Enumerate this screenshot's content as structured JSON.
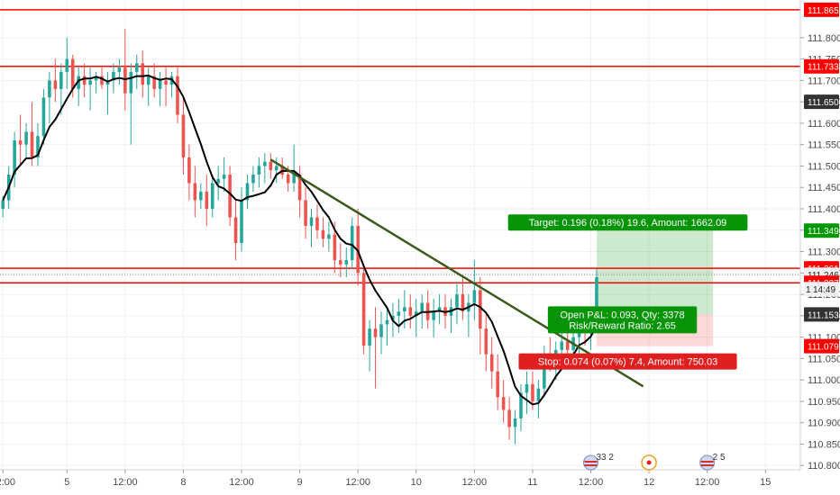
{
  "chart_data": {
    "type": "candlestick",
    "y_range": [
      110.79,
      111.888
    ],
    "price_ticks": [
      110.8,
      110.85,
      110.9,
      110.95,
      111.0,
      111.05,
      111.1,
      111.15,
      111.2,
      111.25,
      111.3,
      111.35,
      111.4,
      111.45,
      111.5,
      111.55,
      111.6,
      111.65,
      111.7,
      111.75,
      111.8
    ],
    "price_tick_labels": [
      "110.800",
      "110.850",
      "110.900",
      "110.950",
      "111.000",
      "111.050",
      "111.100",
      "111.150",
      "111.200",
      "111.250",
      "111.300",
      "111.350",
      "111.400",
      "111.450",
      "111.500",
      "111.550",
      "111.600",
      "111.650",
      "111.700",
      "111.750",
      "111.800"
    ],
    "time_ticks": [
      {
        "i": 0,
        "label": "12:00"
      },
      {
        "i": 11,
        "label": "5"
      },
      {
        "i": 21,
        "label": "12:00"
      },
      {
        "i": 31,
        "label": "8"
      },
      {
        "i": 41,
        "label": "12:00"
      },
      {
        "i": 51,
        "label": "9"
      },
      {
        "i": 61,
        "label": "12:00"
      },
      {
        "i": 71,
        "label": "10"
      },
      {
        "i": 81,
        "label": "12:00"
      },
      {
        "i": 91,
        "label": "11"
      },
      {
        "i": 101,
        "label": "12:00"
      },
      {
        "i": 111,
        "label": "12"
      },
      {
        "i": 121,
        "label": "12:00"
      },
      {
        "i": 131,
        "label": "15"
      }
    ],
    "x_index_range": [
      -0.5,
      137
    ],
    "candles": [
      [
        111.4,
        111.43,
        111.38,
        111.42
      ],
      [
        111.42,
        111.5,
        111.4,
        111.48
      ],
      [
        111.48,
        111.58,
        111.45,
        111.56
      ],
      [
        111.56,
        111.62,
        111.5,
        111.55
      ],
      [
        111.55,
        111.6,
        111.52,
        111.58
      ],
      [
        111.58,
        111.65,
        111.5,
        111.52
      ],
      [
        111.52,
        111.6,
        111.5,
        111.57
      ],
      [
        111.57,
        111.68,
        111.55,
        111.66
      ],
      [
        111.66,
        111.72,
        111.6,
        111.7
      ],
      [
        111.7,
        111.75,
        111.65,
        111.68
      ],
      [
        111.68,
        111.74,
        111.62,
        111.72
      ],
      [
        111.72,
        111.8,
        111.68,
        111.75
      ],
      [
        111.75,
        111.76,
        111.66,
        111.68
      ],
      [
        111.68,
        111.73,
        111.64,
        111.71
      ],
      [
        111.71,
        111.74,
        111.66,
        111.69
      ],
      [
        111.69,
        111.73,
        111.63,
        111.7
      ],
      [
        111.7,
        111.72,
        111.67,
        111.71
      ],
      [
        111.71,
        111.73,
        111.68,
        111.69
      ],
      [
        111.69,
        111.72,
        111.62,
        111.7
      ],
      [
        111.7,
        111.74,
        111.67,
        111.72
      ],
      [
        111.72,
        111.75,
        111.69,
        111.73
      ],
      [
        111.73,
        111.82,
        111.63,
        111.67
      ],
      [
        111.67,
        111.74,
        111.55,
        111.72
      ],
      [
        111.72,
        111.76,
        111.68,
        111.74
      ],
      [
        111.74,
        111.77,
        111.66,
        111.69
      ],
      [
        111.69,
        111.73,
        111.64,
        111.71
      ],
      [
        111.71,
        111.74,
        111.66,
        111.68
      ],
      [
        111.68,
        111.72,
        111.64,
        111.7
      ],
      [
        111.7,
        111.73,
        111.64,
        111.69
      ],
      [
        111.69,
        111.72,
        111.66,
        111.71
      ],
      [
        111.71,
        111.73,
        111.6,
        111.62
      ],
      [
        111.62,
        111.66,
        111.48,
        111.52
      ],
      [
        111.52,
        111.55,
        111.42,
        111.46
      ],
      [
        111.46,
        111.5,
        111.38,
        111.42
      ],
      [
        111.42,
        111.46,
        111.4,
        111.44
      ],
      [
        111.44,
        111.48,
        111.36,
        111.4
      ],
      [
        111.4,
        111.48,
        111.38,
        111.46
      ],
      [
        111.46,
        111.5,
        111.42,
        111.47
      ],
      [
        111.47,
        111.52,
        111.44,
        111.48
      ],
      [
        111.48,
        111.5,
        111.36,
        111.38
      ],
      [
        111.38,
        111.42,
        111.28,
        111.32
      ],
      [
        111.32,
        111.45,
        111.3,
        111.42
      ],
      [
        111.42,
        111.48,
        111.4,
        111.46
      ],
      [
        111.46,
        111.5,
        111.44,
        111.48
      ],
      [
        111.48,
        111.52,
        111.45,
        111.5
      ],
      [
        111.5,
        111.53,
        111.46,
        111.51
      ],
      [
        111.51,
        111.53,
        111.47,
        111.49
      ],
      [
        111.49,
        111.52,
        111.46,
        111.5
      ],
      [
        111.5,
        111.52,
        111.47,
        111.48
      ],
      [
        111.48,
        111.5,
        111.44,
        111.46
      ],
      [
        111.46,
        111.55,
        111.44,
        111.48
      ],
      [
        111.48,
        111.5,
        111.38,
        111.42
      ],
      [
        111.42,
        111.45,
        111.33,
        111.36
      ],
      [
        111.36,
        111.4,
        111.31,
        111.38
      ],
      [
        111.38,
        111.41,
        111.33,
        111.35
      ],
      [
        111.35,
        111.38,
        111.31,
        111.33
      ],
      [
        111.33,
        111.37,
        111.3,
        111.34
      ],
      [
        111.34,
        111.37,
        111.25,
        111.28
      ],
      [
        111.28,
        111.32,
        111.24,
        111.27
      ],
      [
        111.27,
        111.31,
        111.24,
        111.28
      ],
      [
        111.28,
        111.38,
        111.26,
        111.36
      ],
      [
        111.36,
        111.4,
        111.22,
        111.25
      ],
      [
        111.25,
        111.27,
        111.06,
        111.08
      ],
      [
        111.08,
        111.14,
        111.02,
        111.12
      ],
      [
        111.12,
        111.17,
        110.98,
        111.1
      ],
      [
        111.1,
        111.16,
        111.06,
        111.13
      ],
      [
        111.13,
        111.17,
        111.08,
        111.14
      ],
      [
        111.14,
        111.18,
        111.1,
        111.15
      ],
      [
        111.15,
        111.19,
        111.11,
        111.16
      ],
      [
        111.16,
        111.21,
        111.12,
        111.17
      ],
      [
        111.17,
        111.2,
        111.12,
        111.15
      ],
      [
        111.15,
        111.19,
        111.1,
        111.16
      ],
      [
        111.16,
        111.2,
        111.12,
        111.18
      ],
      [
        111.18,
        111.21,
        111.12,
        111.14
      ],
      [
        111.14,
        111.19,
        111.1,
        111.16
      ],
      [
        111.16,
        111.2,
        111.13,
        111.17
      ],
      [
        111.17,
        111.2,
        111.12,
        111.15
      ],
      [
        111.15,
        111.19,
        111.11,
        111.17
      ],
      [
        111.17,
        111.23,
        111.13,
        111.2
      ],
      [
        111.2,
        111.24,
        111.14,
        111.16
      ],
      [
        111.16,
        111.2,
        111.1,
        111.18
      ],
      [
        111.18,
        111.28,
        111.14,
        111.21
      ],
      [
        111.21,
        111.24,
        111.06,
        111.12
      ],
      [
        111.12,
        111.16,
        111.02,
        111.06
      ],
      [
        111.06,
        111.1,
        110.98,
        111.02
      ],
      [
        111.02,
        111.06,
        110.93,
        110.96
      ],
      [
        110.96,
        111.0,
        110.9,
        110.93
      ],
      [
        110.93,
        110.96,
        110.86,
        110.89
      ],
      [
        110.89,
        110.93,
        110.85,
        110.91
      ],
      [
        110.91,
        110.99,
        110.88,
        110.97
      ],
      [
        110.97,
        111.02,
        110.92,
        110.99
      ],
      [
        110.99,
        111.02,
        110.93,
        110.95
      ],
      [
        110.95,
        111.0,
        110.91,
        110.98
      ],
      [
        110.98,
        111.08,
        110.96,
        111.06
      ],
      [
        111.06,
        111.1,
        111.02,
        111.04
      ],
      [
        111.04,
        111.09,
        111.0,
        111.07
      ],
      [
        111.07,
        111.12,
        111.03,
        111.09
      ],
      [
        111.09,
        111.13,
        111.05,
        111.07
      ],
      [
        111.07,
        111.12,
        111.04,
        111.1
      ],
      [
        111.1,
        111.16,
        111.06,
        111.14
      ],
      [
        111.14,
        111.17,
        111.08,
        111.11
      ],
      [
        111.11,
        111.16,
        111.07,
        111.13
      ],
      [
        111.13,
        111.26,
        111.12,
        111.24
      ]
    ],
    "ma_period": 7,
    "ma_color": "#000000",
    "horizontal_lines": [
      111.865,
      111.733,
      111.261,
      111.227
    ],
    "current_price": 111.246,
    "trendline": {
      "from": [
        46,
        111.515
      ],
      "to": [
        110,
        110.985
      ],
      "color": "#3d5a1e"
    },
    "position": {
      "x_start": 102,
      "x_end": 122,
      "entry": 111.153,
      "target": 111.349,
      "stop": 111.079,
      "target_label": "Target: 0.196 (0.18%) 19.6, Amount: 1662.09",
      "pnl_label_1": "Open P&L: 0.093, Qty: 3378",
      "pnl_label_2": "Risk/Reward Ratio: 2.65",
      "stop_label": "Stop: 0.074 (0.07%) 7.4, Amount: 750.03"
    },
    "axis_labels": [
      {
        "value": 111.865,
        "text": "111.865",
        "bg": "#ff0000",
        "fg": "#ffffff"
      },
      {
        "value": 111.733,
        "text": "111.733",
        "bg": "#ff0000",
        "fg": "#ffffff"
      },
      {
        "value": 111.65,
        "text": "111.650",
        "bg": "#333333",
        "fg": "#ffffff"
      },
      {
        "value": 111.349,
        "text": "111.349",
        "bg": "#009900",
        "fg": "#ffffff"
      },
      {
        "value": 111.261,
        "text": "111.261",
        "bg": "#ff0000",
        "fg": "#ffffff"
      },
      {
        "value": 111.246,
        "text": "111.246",
        "bg": "#f0f0f0",
        "fg": "#222222"
      },
      {
        "value": 111.227,
        "text": "111.227",
        "bg": "#ff0000",
        "fg": "#ffffff"
      },
      {
        "value": 111.153,
        "text": "111.153",
        "bg": "#333333",
        "fg": "#ffffff"
      },
      {
        "value": 111.079,
        "text": "111.079",
        "bg": "#ff0000",
        "fg": "#ffffff"
      }
    ],
    "countdown_label": "14:49",
    "countdown_prefix": "1",
    "events": [
      {
        "i": 101,
        "icon": "us-flag-icon",
        "text": "33 2"
      },
      {
        "i": 111,
        "icon": "event-dot-icon",
        "text": ""
      },
      {
        "i": 121,
        "icon": "us-flag-icon",
        "text": "2 5"
      }
    ],
    "colors": {
      "up": "#26a69a",
      "down": "#ef5350",
      "line": "#ff0000",
      "grid": "#eef0f3",
      "target_zone": "rgba(76,175,80,0.28)",
      "stop_zone": "rgba(244,67,54,0.20)",
      "target_box": "#089408",
      "stop_box": "#e02020"
    }
  }
}
